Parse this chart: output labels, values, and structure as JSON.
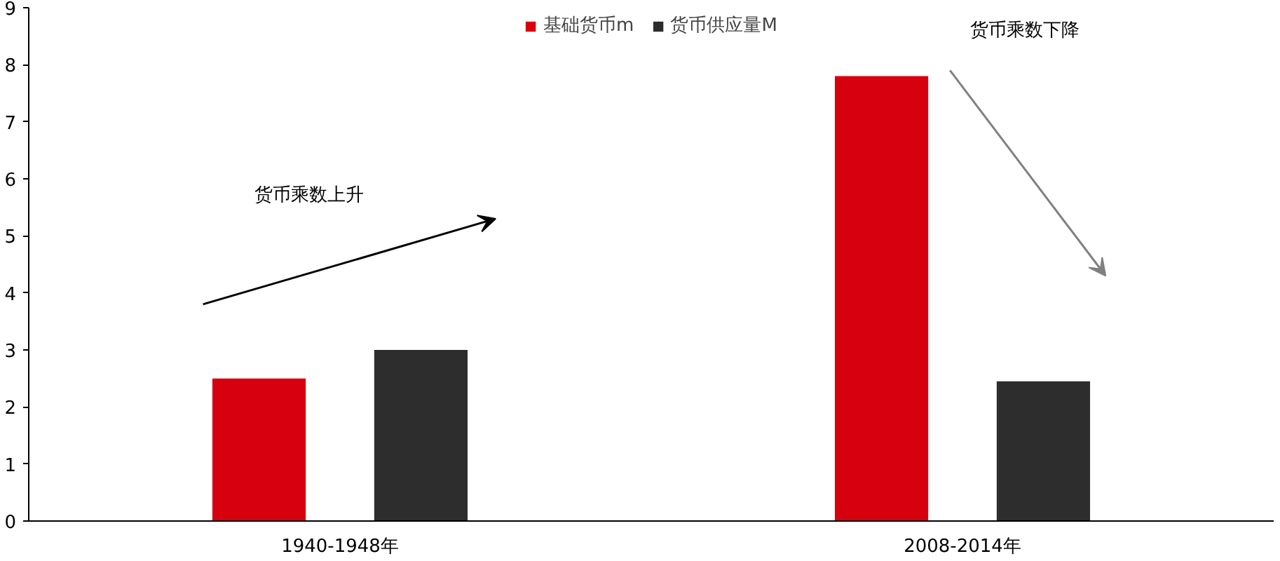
{
  "chart_data": {
    "type": "bar",
    "categories": [
      "1940-1948年",
      "2008-2014年"
    ],
    "series": [
      {
        "name": "基础货币m",
        "color": "#d7000f",
        "values": [
          2.5,
          7.8
        ]
      },
      {
        "name": "货币供应量M",
        "color": "#2d2d2d",
        "values": [
          3.0,
          2.45
        ]
      }
    ],
    "ylim": [
      0,
      9
    ],
    "yticks": [
      0,
      1,
      2,
      3,
      4,
      5,
      6,
      7,
      8,
      9
    ],
    "grid": false,
    "legend": "top",
    "annotations": [
      "货币乘数上升",
      "货币乘数下降"
    ]
  }
}
